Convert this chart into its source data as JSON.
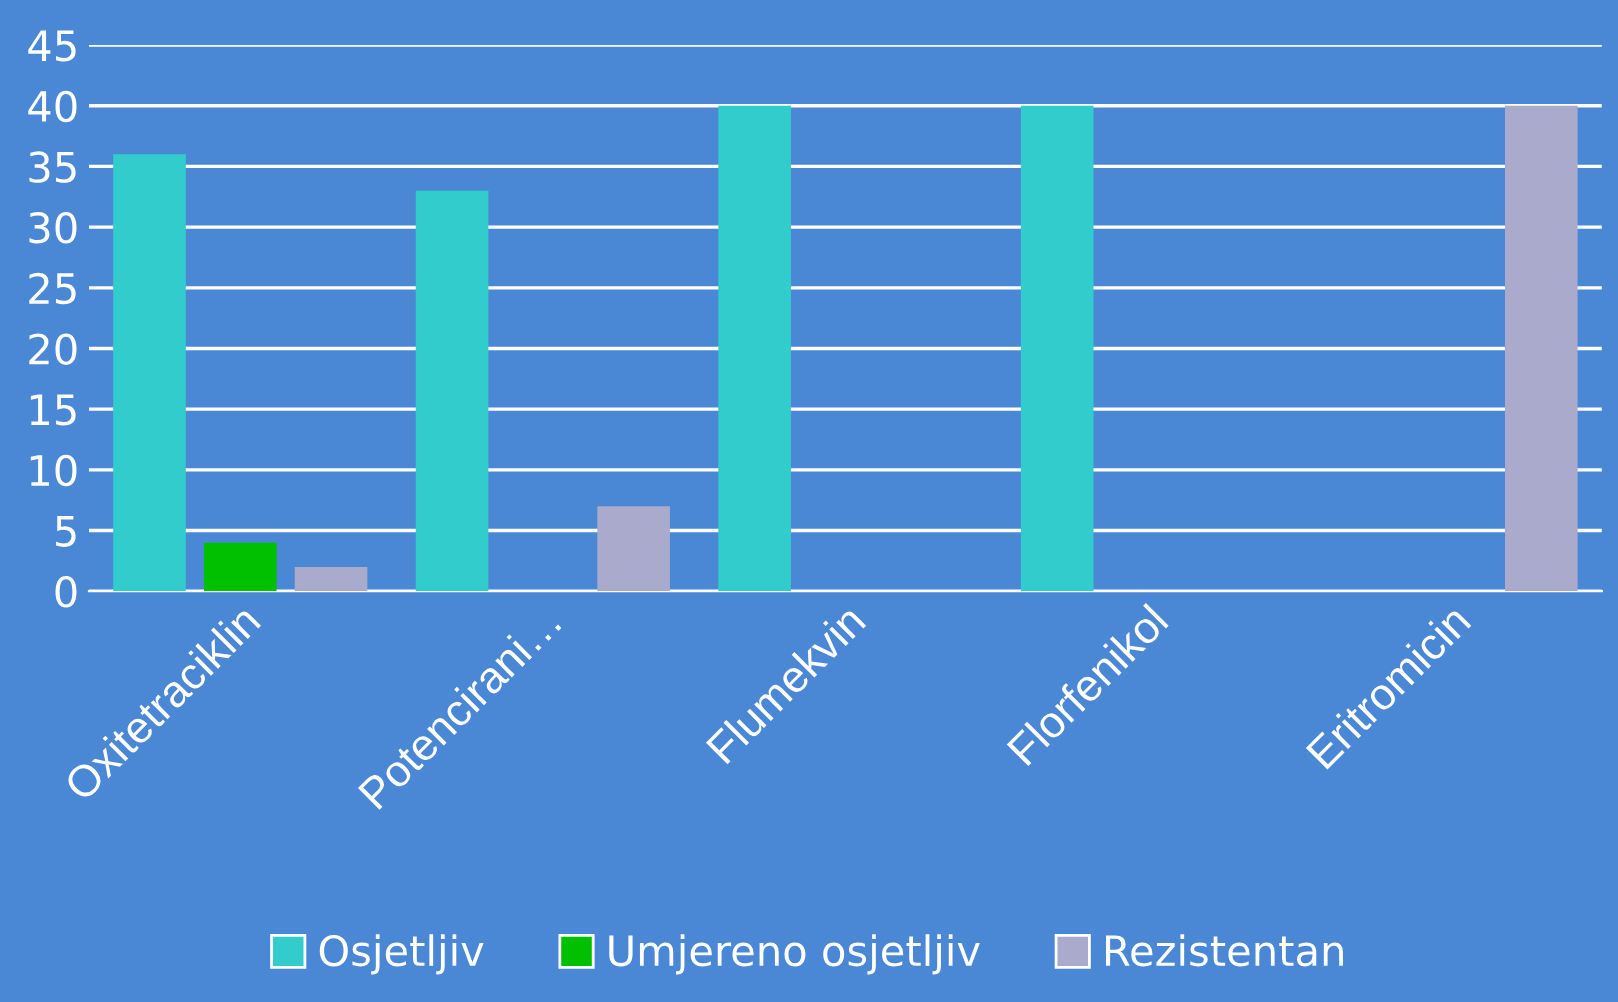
{
  "chart_data": {
    "type": "bar",
    "categories": [
      "Oxitetraciklin",
      "Potencirani…",
      "Flumekvin",
      "Florfenikol",
      "Eritromicin"
    ],
    "series": [
      {
        "name": "Osjetljiv",
        "color": "#33cccc",
        "values": [
          36,
          33,
          40,
          40,
          null
        ]
      },
      {
        "name": "Umjereno osjetljiv",
        "color": "#00c000",
        "values": [
          4,
          null,
          null,
          null,
          null
        ]
      },
      {
        "name": "Rezistentan",
        "color": "#aaaacc",
        "values": [
          2,
          7,
          null,
          null,
          40
        ]
      }
    ],
    "ylim": [
      0,
      45
    ],
    "yticks": [
      0,
      5,
      10,
      15,
      20,
      25,
      30,
      35,
      40,
      45
    ],
    "grid": "y",
    "legend": "bottom"
  }
}
